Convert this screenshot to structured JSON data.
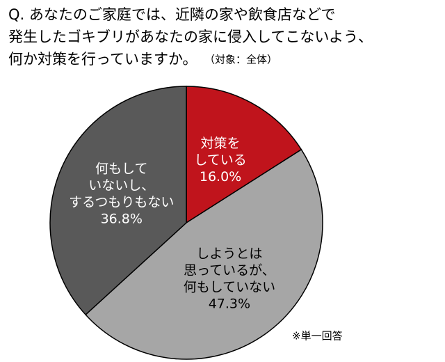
{
  "chart_data": {
    "type": "pie",
    "title": [
      "Q. あなたのご家庭では、近隣の家や飲食店などで",
      "発生したゴキブリがあなたの家に侵入してこないよう、",
      "何か対策を行っていますか。"
    ],
    "subtitle": "（対象：全体）",
    "note": "※単一回答",
    "categories": [
      [
        "対策を",
        "している"
      ],
      [
        "しようとは",
        "思っているが、",
        "何もしていない"
      ],
      [
        "何もして",
        "いないし、",
        "するつもりもない"
      ]
    ],
    "values": [
      16.0,
      47.3,
      36.8
    ],
    "value_labels": [
      "16.0%",
      "47.3%",
      "36.8%"
    ],
    "colors": [
      "#c0141c",
      "#a6a6a6",
      "#595959"
    ],
    "label_colors": [
      "#ffffff",
      "#000000",
      "#ffffff"
    ]
  }
}
